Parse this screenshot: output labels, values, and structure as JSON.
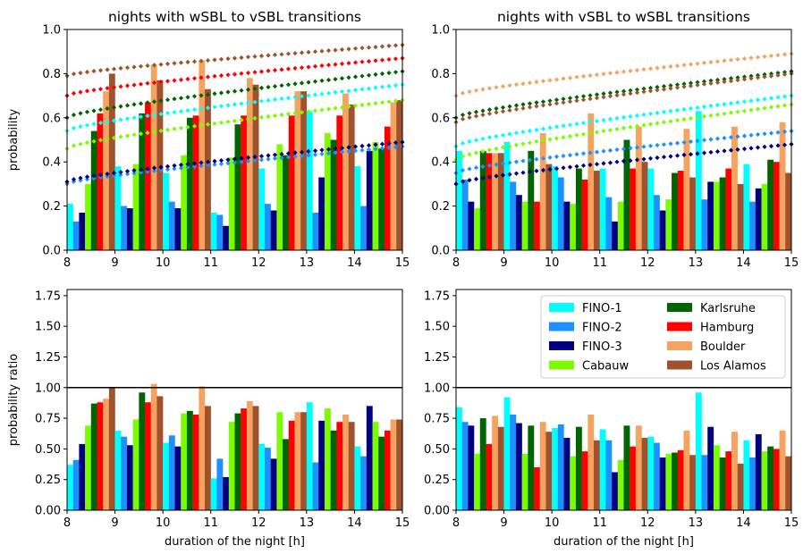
{
  "stations": [
    {
      "name": "FINO-1",
      "color": "#00FFFF"
    },
    {
      "name": "FINO-2",
      "color": "#1E90FF"
    },
    {
      "name": "FINO-3",
      "color": "#000080"
    },
    {
      "name": "Cabauw",
      "color": "#7CFC00"
    },
    {
      "name": "Karlsruhe",
      "color": "#006400"
    },
    {
      "name": "Hamburg",
      "color": "#FF0000"
    },
    {
      "name": "Boulder",
      "color": "#F4A460"
    },
    {
      "name": "Los Alamos",
      "color": "#A0522D"
    }
  ],
  "shared": {
    "xlabel": "duration of the night [h]",
    "xticks": [
      "8",
      "9",
      "10",
      "11",
      "12",
      "13",
      "14",
      "15"
    ]
  },
  "chart_data": [
    {
      "type": "bar",
      "panel": "top-left",
      "title": "nights with wSBL to vSBL transitions",
      "ylabel": "probability",
      "xlim": [
        8,
        15
      ],
      "ylim": [
        0,
        1.0
      ],
      "yticks": [
        "0.0",
        "0.2",
        "0.4",
        "0.6",
        "0.8",
        "1.0"
      ],
      "categories": [
        "8.5",
        "9.5",
        "10.5",
        "11.5",
        "12.5",
        "13.5",
        "14.5"
      ],
      "series": [
        {
          "name": "FINO-1",
          "values": [
            0.21,
            0.38,
            0.35,
            0.17,
            0.37,
            0.63,
            0.38
          ]
        },
        {
          "name": "FINO-2",
          "values": [
            0.13,
            0.2,
            0.22,
            0.16,
            0.21,
            0.17,
            0.2
          ]
        },
        {
          "name": "FINO-3",
          "values": [
            0.17,
            0.19,
            0.19,
            0.11,
            0.18,
            0.33,
            0.45
          ]
        },
        {
          "name": "Cabauw",
          "values": [
            0.3,
            0.39,
            0.43,
            0.42,
            0.48,
            0.53,
            0.49
          ]
        },
        {
          "name": "Karlsruhe",
          "values": [
            0.54,
            0.62,
            0.6,
            0.57,
            0.43,
            0.5,
            0.46
          ]
        },
        {
          "name": "Hamburg",
          "values": [
            0.62,
            0.67,
            0.61,
            0.61,
            0.61,
            0.61,
            0.56
          ]
        },
        {
          "name": "Boulder",
          "values": [
            0.72,
            0.84,
            0.86,
            0.78,
            0.72,
            0.71,
            0.67
          ]
        },
        {
          "name": "Los Alamos",
          "values": [
            0.8,
            0.77,
            0.73,
            0.75,
            0.72,
            0.66,
            0.68
          ]
        }
      ],
      "fits": [
        {
          "name": "FINO-1",
          "y8": 0.54,
          "y15": 0.75
        },
        {
          "name": "FINO-2",
          "y8": 0.3,
          "y15": 0.47
        },
        {
          "name": "FINO-3",
          "y8": 0.31,
          "y15": 0.49
        },
        {
          "name": "Cabauw",
          "y8": 0.46,
          "y15": 0.68
        },
        {
          "name": "Karlsruhe",
          "y8": 0.6,
          "y15": 0.81
        },
        {
          "name": "Hamburg",
          "y8": 0.7,
          "y15": 0.87
        },
        {
          "name": "Los Alamos",
          "y8": 0.79,
          "y15": 0.93
        }
      ]
    },
    {
      "type": "bar",
      "panel": "top-right",
      "title": "nights with vSBL to wSBL transitions",
      "ylabel": "",
      "xlim": [
        8,
        15
      ],
      "ylim": [
        0,
        1.0
      ],
      "yticks": [
        "0.0",
        "0.2",
        "0.4",
        "0.6",
        "0.8",
        "1.0"
      ],
      "categories": [
        "8.5",
        "9.5",
        "10.5",
        "11.5",
        "12.5",
        "13.5",
        "14.5"
      ],
      "series": [
        {
          "name": "FINO-1",
          "values": [
            0.45,
            0.49,
            0.38,
            0.37,
            0.37,
            0.63,
            0.39
          ]
        },
        {
          "name": "FINO-2",
          "values": [
            0.32,
            0.31,
            0.33,
            0.24,
            0.25,
            0.23,
            0.22
          ]
        },
        {
          "name": "FINO-3",
          "values": [
            0.22,
            0.25,
            0.22,
            0.13,
            0.18,
            0.31,
            0.28
          ]
        },
        {
          "name": "Cabauw",
          "values": [
            0.19,
            0.22,
            0.21,
            0.22,
            0.23,
            0.31,
            0.3
          ]
        },
        {
          "name": "Karlsruhe",
          "values": [
            0.45,
            0.45,
            0.37,
            0.5,
            0.35,
            0.33,
            0.41
          ]
        },
        {
          "name": "Hamburg",
          "values": [
            0.44,
            0.22,
            0.32,
            0.37,
            0.36,
            0.37,
            0.4
          ]
        },
        {
          "name": "Boulder",
          "values": [
            0.44,
            0.53,
            0.62,
            0.56,
            0.55,
            0.56,
            0.58
          ]
        },
        {
          "name": "Los Alamos",
          "values": [
            0.44,
            0.39,
            0.36,
            0.4,
            0.33,
            0.3,
            0.35
          ]
        }
      ],
      "fits": [
        {
          "name": "FINO-1",
          "y8": 0.47,
          "y15": 0.7
        },
        {
          "name": "FINO-2",
          "y8": 0.35,
          "y15": 0.54
        },
        {
          "name": "FINO-3",
          "y8": 0.3,
          "y15": 0.48
        },
        {
          "name": "Cabauw",
          "y8": 0.41,
          "y15": 0.66
        },
        {
          "name": "Karlsruhe",
          "y8": 0.6,
          "y15": 0.81
        },
        {
          "name": "Boulder",
          "y8": 0.7,
          "y15": 0.89
        },
        {
          "name": "Los Alamos",
          "y8": 0.58,
          "y15": 0.8
        }
      ]
    },
    {
      "type": "bar",
      "panel": "bottom-left",
      "title": "",
      "ylabel": "probability ratio",
      "xlim": [
        8,
        15
      ],
      "ylim": [
        0,
        1.8
      ],
      "yticks": [
        "0.00",
        "0.25",
        "0.50",
        "0.75",
        "1.00",
        "1.25",
        "1.50",
        "1.75"
      ],
      "reference_line": 1.0,
      "categories": [
        "8.5",
        "9.5",
        "10.5",
        "11.5",
        "12.5",
        "13.5",
        "14.5"
      ],
      "series": [
        {
          "name": "FINO-1",
          "values": [
            0.37,
            0.65,
            0.55,
            0.26,
            0.54,
            0.88,
            0.52
          ]
        },
        {
          "name": "FINO-2",
          "values": [
            0.41,
            0.6,
            0.61,
            0.42,
            0.51,
            0.39,
            0.44
          ]
        },
        {
          "name": "FINO-3",
          "values": [
            0.54,
            0.53,
            0.52,
            0.27,
            0.42,
            0.73,
            0.85
          ]
        },
        {
          "name": "Cabauw",
          "values": [
            0.69,
            0.74,
            0.79,
            0.72,
            0.8,
            0.83,
            0.72
          ]
        },
        {
          "name": "Karlsruhe",
          "values": [
            0.87,
            0.96,
            0.81,
            0.79,
            0.58,
            0.65,
            0.6
          ]
        },
        {
          "name": "Hamburg",
          "values": [
            0.88,
            0.88,
            0.78,
            0.83,
            0.73,
            0.72,
            0.65
          ]
        },
        {
          "name": "Boulder",
          "values": [
            0.91,
            1.03,
            1.01,
            0.89,
            0.8,
            0.78,
            0.74
          ]
        },
        {
          "name": "Los Alamos",
          "values": [
            1.0,
            0.93,
            0.85,
            0.85,
            0.8,
            0.72,
            0.74
          ]
        }
      ]
    },
    {
      "type": "bar",
      "panel": "bottom-right",
      "title": "",
      "ylabel": "",
      "xlim": [
        8,
        15
      ],
      "ylim": [
        0,
        1.8
      ],
      "yticks": [
        "0.00",
        "0.25",
        "0.50",
        "0.75",
        "1.00",
        "1.25",
        "1.50",
        "1.75"
      ],
      "reference_line": 1.0,
      "legend": "top-right",
      "categories": [
        "8.5",
        "9.5",
        "10.5",
        "11.5",
        "12.5",
        "13.5",
        "14.5"
      ],
      "series": [
        {
          "name": "FINO-1",
          "values": [
            0.84,
            0.92,
            0.67,
            0.66,
            0.6,
            0.96,
            0.57
          ]
        },
        {
          "name": "FINO-2",
          "values": [
            0.72,
            0.78,
            0.7,
            0.57,
            0.55,
            0.45,
            0.43
          ]
        },
        {
          "name": "FINO-3",
          "values": [
            0.69,
            0.71,
            0.59,
            0.31,
            0.43,
            0.68,
            0.62
          ]
        },
        {
          "name": "Cabauw",
          "values": [
            0.46,
            0.46,
            0.44,
            0.41,
            0.46,
            0.53,
            0.48
          ]
        },
        {
          "name": "Karlsruhe",
          "values": [
            0.75,
            0.69,
            0.68,
            0.69,
            0.47,
            0.43,
            0.52
          ]
        },
        {
          "name": "Hamburg",
          "values": [
            0.54,
            0.35,
            0.48,
            0.52,
            0.49,
            0.48,
            0.5
          ]
        },
        {
          "name": "Boulder",
          "values": [
            0.77,
            0.72,
            0.78,
            0.69,
            0.65,
            0.64,
            0.65
          ]
        },
        {
          "name": "Los Alamos",
          "values": [
            0.68,
            0.64,
            0.57,
            0.59,
            0.45,
            0.38,
            0.44
          ]
        }
      ]
    }
  ]
}
